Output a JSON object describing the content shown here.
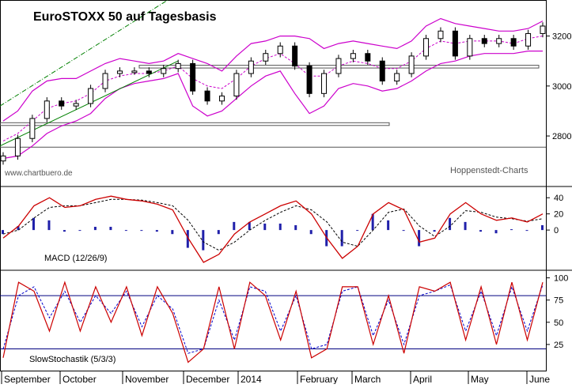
{
  "title": "EuroSTOXX 50 auf Tagesbasis",
  "source_left": "www.chartbuero.de",
  "source_right": "Hoppenstedt-Charts",
  "x_axis": {
    "labels": [
      "September",
      "October",
      "November",
      "December",
      "2014",
      "February",
      "March",
      "April",
      "May",
      "June"
    ]
  },
  "chart_data": [
    {
      "type": "candlestick",
      "panel": "price",
      "title": "EuroSTOXX 50 auf Tagesbasis",
      "ylim": [
        2680,
        3300
      ],
      "yticks": [
        2800,
        3000,
        3200
      ],
      "grid": false,
      "colors": {
        "bollinger": "#cc00cc",
        "moving_average": "#cc00cc",
        "trendline_solid": "#008000",
        "trendline_dashdot": "#008000",
        "candle": "#000000"
      },
      "x": [
        "Sep",
        "Sep",
        "Sep",
        "Sep",
        "Sep",
        "Oct",
        "Oct",
        "Oct",
        "Oct",
        "Nov",
        "Nov",
        "Nov",
        "Nov",
        "Dec",
        "Dec",
        "Dec",
        "Dec",
        "Jan",
        "Jan",
        "Jan",
        "Jan",
        "Feb",
        "Feb",
        "Feb",
        "Feb",
        "Mar",
        "Mar",
        "Mar",
        "Mar",
        "Apr",
        "Apr",
        "Apr",
        "Apr",
        "May",
        "May",
        "May",
        "May",
        "May"
      ],
      "close": [
        2720,
        2790,
        2870,
        2940,
        2920,
        2930,
        2990,
        3050,
        3060,
        3060,
        3050,
        3070,
        3090,
        2980,
        2940,
        2960,
        3050,
        3100,
        3130,
        3160,
        3080,
        2970,
        3050,
        3110,
        3130,
        3100,
        3020,
        3050,
        3120,
        3190,
        3220,
        3120,
        3190,
        3170,
        3190,
        3160,
        3210,
        3240
      ],
      "bollinger_upper": [
        2860,
        2900,
        2980,
        3020,
        3030,
        3030,
        3060,
        3090,
        3110,
        3100,
        3090,
        3100,
        3130,
        3110,
        3090,
        3060,
        3120,
        3170,
        3180,
        3200,
        3200,
        3190,
        3150,
        3170,
        3180,
        3170,
        3160,
        3150,
        3180,
        3240,
        3270,
        3250,
        3240,
        3230,
        3220,
        3220,
        3230,
        3260
      ],
      "bollinger_lower": [
        2710,
        2720,
        2760,
        2810,
        2840,
        2860,
        2890,
        2950,
        2990,
        3010,
        3020,
        3030,
        3050,
        2920,
        2880,
        2900,
        2950,
        3000,
        3040,
        3060,
        2970,
        2890,
        2920,
        2990,
        3010,
        3000,
        2980,
        2990,
        3020,
        3060,
        3090,
        3100,
        3120,
        3130,
        3130,
        3130,
        3140,
        3140
      ],
      "moving_average": [
        2780,
        2810,
        2860,
        2910,
        2930,
        2940,
        2970,
        3020,
        3040,
        3050,
        3050,
        3060,
        3080,
        3030,
        3000,
        2990,
        3030,
        3080,
        3110,
        3130,
        3090,
        3040,
        3040,
        3080,
        3100,
        3090,
        3070,
        3070,
        3100,
        3150,
        3180,
        3170,
        3180,
        3180,
        3180,
        3170,
        3190,
        3200
      ],
      "horizontal_bands": [
        [
          2842,
          2853
        ],
        [
          3072,
          3083
        ]
      ],
      "horizontal_lines": [
        2755
      ],
      "trendlines": [
        {
          "style": "solid",
          "from": [
            "Sep",
            2760
          ],
          "to": [
            "Nov",
            3100
          ]
        },
        {
          "style": "dash-dot",
          "from": [
            "Sep",
            2920
          ],
          "to": [
            "Nov",
            3350
          ]
        }
      ]
    },
    {
      "type": "line",
      "panel": "macd",
      "label": "MACD (12/26/9)",
      "ylim": [
        -40,
        50
      ],
      "yticks": [
        0,
        20,
        40
      ],
      "colors": {
        "macd": "#cc0000",
        "signal": "#000000",
        "histogram": "#2020aa"
      },
      "x": [
        "Sep",
        "Sep",
        "Sep",
        "Sep",
        "Oct",
        "Oct",
        "Oct",
        "Oct",
        "Nov",
        "Nov",
        "Nov",
        "Nov",
        "Dec",
        "Dec",
        "Dec",
        "Dec",
        "Jan",
        "Jan",
        "Jan",
        "Jan",
        "Feb",
        "Feb",
        "Feb",
        "Feb",
        "Mar",
        "Mar",
        "Mar",
        "Mar",
        "Apr",
        "Apr",
        "Apr",
        "Apr",
        "May",
        "May",
        "May",
        "May"
      ],
      "macd": [
        -10,
        5,
        30,
        40,
        28,
        30,
        38,
        42,
        38,
        36,
        32,
        25,
        -10,
        -40,
        -30,
        -5,
        10,
        20,
        30,
        36,
        20,
        -10,
        -35,
        -20,
        20,
        34,
        25,
        -15,
        -10,
        20,
        34,
        20,
        12,
        15,
        10,
        20
      ],
      "signal": [
        -5,
        0,
        15,
        28,
        30,
        30,
        34,
        38,
        38,
        37,
        34,
        30,
        12,
        -15,
        -25,
        -15,
        0,
        12,
        22,
        30,
        25,
        10,
        -15,
        -20,
        0,
        22,
        26,
        5,
        -8,
        5,
        24,
        22,
        16,
        14,
        11,
        14
      ],
      "histogram": [
        -5,
        5,
        15,
        12,
        -2,
        0,
        4,
        4,
        0,
        -1,
        -2,
        -5,
        -22,
        -25,
        -5,
        10,
        10,
        8,
        8,
        6,
        -5,
        -20,
        -20,
        0,
        20,
        12,
        -1,
        -20,
        -2,
        15,
        10,
        -2,
        -4,
        1,
        -1,
        6
      ]
    },
    {
      "type": "line",
      "panel": "stochastic",
      "label": "SlowStochastik (5/3/3)",
      "ylim": [
        0,
        105
      ],
      "yticks": [
        25,
        50,
        75,
        100
      ],
      "reference_lines": [
        80,
        20
      ],
      "colors": {
        "k": "#cc0000",
        "d": "#0000cc",
        "reference": "#000080"
      },
      "x": [
        "Sep",
        "Sep",
        "Sep",
        "Sep",
        "Oct",
        "Oct",
        "Oct",
        "Oct",
        "Nov",
        "Nov",
        "Nov",
        "Nov",
        "Dec",
        "Dec",
        "Dec",
        "Dec",
        "Jan",
        "Jan",
        "Jan",
        "Jan",
        "Feb",
        "Feb",
        "Feb",
        "Feb",
        "Mar",
        "Mar",
        "Mar",
        "Mar",
        "Apr",
        "Apr",
        "Apr",
        "Apr",
        "May",
        "May",
        "May",
        "May"
      ],
      "k": [
        10,
        95,
        85,
        40,
        95,
        40,
        90,
        50,
        90,
        35,
        90,
        60,
        5,
        20,
        90,
        20,
        95,
        80,
        30,
        85,
        10,
        20,
        90,
        90,
        25,
        80,
        15,
        90,
        85,
        95,
        30,
        90,
        25,
        95,
        30,
        95
      ],
      "d": [
        20,
        80,
        90,
        55,
        85,
        50,
        80,
        60,
        85,
        45,
        80,
        65,
        15,
        20,
        75,
        30,
        90,
        85,
        40,
        80,
        20,
        25,
        85,
        90,
        35,
        75,
        25,
        80,
        85,
        92,
        40,
        85,
        35,
        90,
        40,
        92
      ]
    }
  ]
}
